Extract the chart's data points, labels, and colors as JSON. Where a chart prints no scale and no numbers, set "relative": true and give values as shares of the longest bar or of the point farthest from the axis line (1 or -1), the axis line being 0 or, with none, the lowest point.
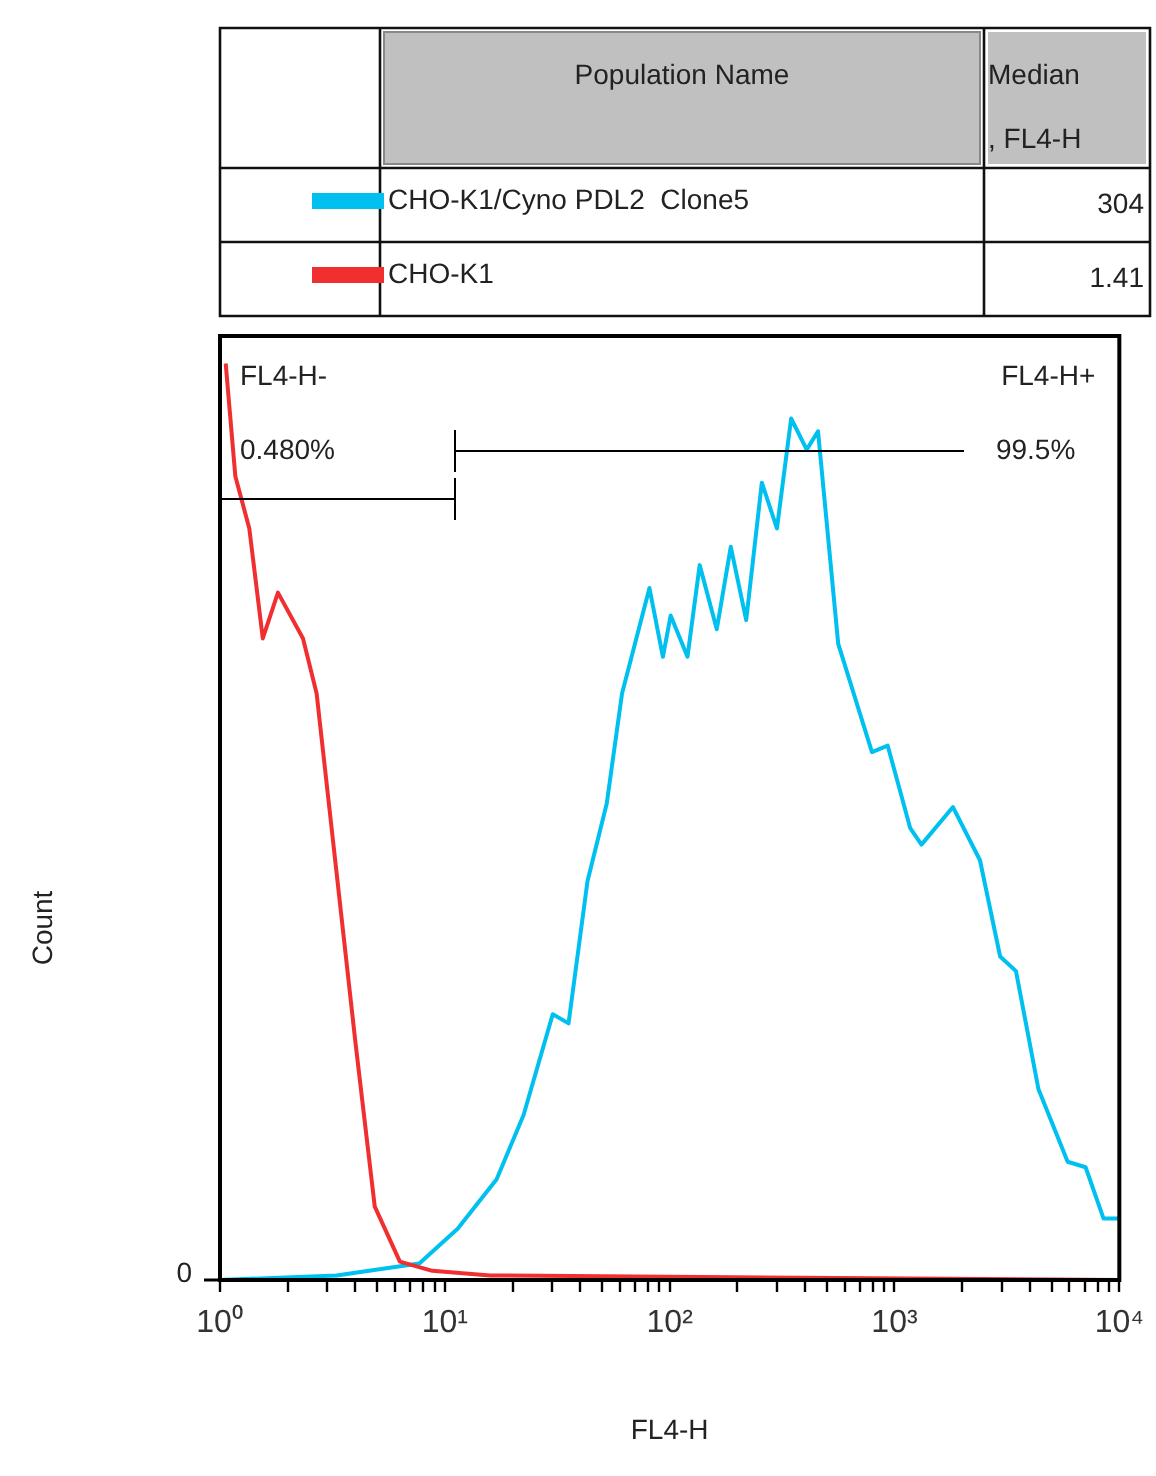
{
  "chart_data": {
    "type": "line",
    "relative": true,
    "legend": "top",
    "legend_title": "Population Name",
    "xlabel": "FL4-H",
    "ylabel": "Count",
    "log": "x",
    "grid": false,
    "marker": "none",
    "line_style": "solid",
    "xlim": [
      1,
      10000
    ],
    "xticks": [
      {
        "value": 1,
        "label": "10⁰"
      },
      {
        "value": 2,
        "label": null
      },
      {
        "value": 3,
        "label": null
      },
      {
        "value": 4,
        "label": null
      },
      {
        "value": 5,
        "label": null
      },
      {
        "value": 6,
        "label": null
      },
      {
        "value": 7,
        "label": null
      },
      {
        "value": 8,
        "label": null
      },
      {
        "value": 9,
        "label": null
      },
      {
        "value": 10,
        "label": "10¹"
      },
      {
        "value": 20,
        "label": null
      },
      {
        "value": 30,
        "label": null
      },
      {
        "value": 40,
        "label": null
      },
      {
        "value": 50,
        "label": null
      },
      {
        "value": 60,
        "label": null
      },
      {
        "value": 70,
        "label": null
      },
      {
        "value": 80,
        "label": null
      },
      {
        "value": 90,
        "label": null
      },
      {
        "value": 100,
        "label": "10²"
      },
      {
        "value": 200,
        "label": null
      },
      {
        "value": 300,
        "label": null
      },
      {
        "value": 400,
        "label": null
      },
      {
        "value": 500,
        "label": null
      },
      {
        "value": 600,
        "label": null
      },
      {
        "value": 700,
        "label": null
      },
      {
        "value": 800,
        "label": null
      },
      {
        "value": 900,
        "label": null
      },
      {
        "value": 1000,
        "label": "10³"
      },
      {
        "value": 2000,
        "label": null
      },
      {
        "value": 3000,
        "label": null
      },
      {
        "value": 4000,
        "label": null
      },
      {
        "value": 5000,
        "label": null
      },
      {
        "value": 6000,
        "label": null
      },
      {
        "value": 7000,
        "label": null
      },
      {
        "value": 8000,
        "label": null
      },
      {
        "value": 9000,
        "label": null
      },
      {
        "value": 10000,
        "label": "10⁴"
      }
    ],
    "series": [
      {
        "name": "CHO-K1/Cyno PDL2  Clone5",
        "color": "#00c0f0",
        "x": [
          1,
          3.3,
          7.7,
          11.4,
          17,
          22.4,
          30.2,
          35.5,
          43.1,
          52.5,
          61.4,
          81.3,
          93.3,
          101,
          120,
          136,
          162,
          187,
          219,
          257,
          300,
          347,
          407,
          457,
          562,
          794,
          933,
          1175,
          1318,
          1820,
          2400,
          2950,
          3470,
          4370,
          5890,
          7080,
          8510,
          10000
        ],
        "values": [
          0,
          0.005,
          0.018,
          0.056,
          0.11,
          0.18,
          0.29,
          0.28,
          0.435,
          0.52,
          0.64,
          0.755,
          0.68,
          0.725,
          0.68,
          0.78,
          0.71,
          0.8,
          0.72,
          0.87,
          0.82,
          0.94,
          0.906,
          0.926,
          0.694,
          0.576,
          0.583,
          0.493,
          0.475,
          0.516,
          0.458,
          0.353,
          0.337,
          0.208,
          0.129,
          0.123,
          0.067,
          0.067
        ]
      },
      {
        "name": "CHO-K1",
        "color": "#f03030",
        "x": [
          1.06,
          1.17,
          1.35,
          1.55,
          1.81,
          2.34,
          2.69,
          3.28,
          4,
          4.88,
          6.31,
          8.8,
          15.9,
          10000
        ],
        "values": [
          1,
          0.877,
          0.82,
          0.7,
          0.75,
          0.7,
          0.64,
          0.45,
          0.26,
          0.08,
          0.02,
          0.01,
          0.005,
          0
        ]
      }
    ],
    "annotations": [
      "Median, FL4-H",
      "304",
      "1.41",
      "FL4-H-",
      "0.480%",
      "FL4-H+",
      "99.5%",
      "0"
    ]
  }
}
